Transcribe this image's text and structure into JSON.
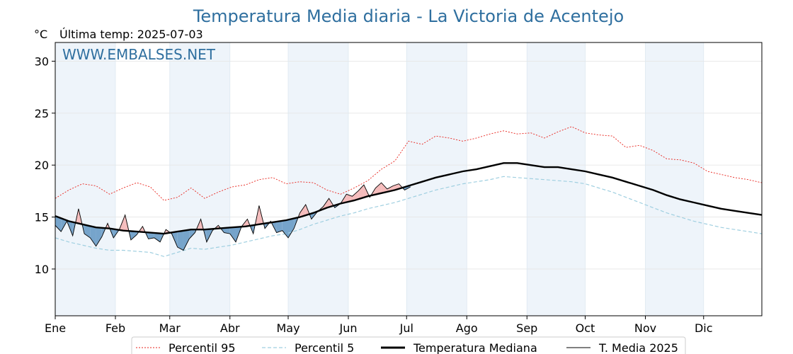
{
  "title": "Temperatura Media diaria - La Victoria de Acentejo",
  "unit": "°C",
  "last_temp_label": "Última temp: 2025-07-03",
  "watermark": "WWW.EMBALSES.NET",
  "colors": {
    "title": "#2f6f9f",
    "p95": "#e8231c",
    "p5": "#9fcfe0",
    "median": "#000000",
    "current": "#000000",
    "above_fill": "#f4b8b8",
    "below_fill": "#6f9fc8",
    "band": "#eef4fa"
  },
  "chart_data": {
    "type": "line",
    "xlabel": "",
    "ylabel": "°C",
    "ylim": [
      5.5,
      31.8
    ],
    "yticks": [
      10,
      15,
      20,
      25,
      30
    ],
    "xlim_days": [
      1,
      365
    ],
    "months": [
      {
        "label": "Ene",
        "day": 1
      },
      {
        "label": "Feb",
        "day": 32
      },
      {
        "label": "Mar",
        "day": 60
      },
      {
        "label": "Abr",
        "day": 91
      },
      {
        "label": "May",
        "day": 121
      },
      {
        "label": "Jun",
        "day": 152
      },
      {
        "label": "Jul",
        "day": 182
      },
      {
        "label": "Ago",
        "day": 213
      },
      {
        "label": "Sep",
        "day": 244
      },
      {
        "label": "Oct",
        "day": 274
      },
      {
        "label": "Nov",
        "day": 305
      },
      {
        "label": "Dic",
        "day": 335
      }
    ],
    "grid": true,
    "legend_placement": "bottom-center",
    "series": [
      {
        "name": "Percentil 95",
        "style": "dotted",
        "x": [
          1,
          8,
          15,
          22,
          29,
          36,
          43,
          50,
          57,
          64,
          71,
          78,
          85,
          92,
          99,
          106,
          113,
          120,
          127,
          134,
          141,
          148,
          155,
          162,
          169,
          176,
          183,
          190,
          197,
          204,
          211,
          218,
          225,
          232,
          239,
          246,
          253,
          260,
          267,
          274,
          281,
          288,
          295,
          302,
          309,
          316,
          323,
          330,
          337,
          344,
          351,
          358,
          365
        ],
        "y": [
          16.8,
          17.6,
          18.2,
          18.0,
          17.2,
          17.8,
          18.3,
          17.9,
          16.6,
          16.9,
          17.8,
          16.8,
          17.4,
          17.9,
          18.1,
          18.6,
          18.8,
          18.2,
          18.4,
          18.3,
          17.6,
          17.2,
          17.8,
          18.5,
          19.6,
          20.4,
          22.3,
          22.0,
          22.8,
          22.6,
          22.3,
          22.6,
          23.0,
          23.3,
          23.0,
          23.1,
          22.6,
          23.2,
          23.7,
          23.1,
          22.9,
          22.8,
          21.7,
          21.9,
          21.4,
          20.6,
          20.5,
          20.2,
          19.4,
          19.1,
          18.8,
          18.6,
          18.3
        ]
      },
      {
        "name": "Percentil 5",
        "style": "dashed",
        "x": [
          1,
          8,
          15,
          22,
          29,
          36,
          43,
          50,
          57,
          64,
          71,
          78,
          85,
          92,
          99,
          106,
          113,
          120,
          127,
          134,
          141,
          148,
          155,
          162,
          169,
          176,
          183,
          190,
          197,
          204,
          211,
          218,
          225,
          232,
          239,
          246,
          253,
          260,
          267,
          274,
          281,
          288,
          295,
          302,
          309,
          316,
          323,
          330,
          337,
          344,
          351,
          358,
          365
        ],
        "y": [
          13.0,
          12.6,
          12.3,
          12.0,
          11.8,
          11.8,
          11.7,
          11.6,
          11.2,
          11.6,
          12.0,
          11.9,
          12.1,
          12.3,
          12.6,
          12.9,
          13.2,
          13.4,
          13.8,
          14.3,
          14.7,
          15.1,
          15.4,
          15.8,
          16.1,
          16.4,
          16.8,
          17.2,
          17.6,
          17.9,
          18.2,
          18.4,
          18.6,
          18.9,
          18.8,
          18.7,
          18.6,
          18.5,
          18.4,
          18.2,
          17.8,
          17.4,
          16.9,
          16.4,
          15.9,
          15.4,
          15.0,
          14.6,
          14.3,
          14.0,
          13.8,
          13.6,
          13.4
        ]
      },
      {
        "name": "Temperatura Mediana",
        "style": "solid-thick",
        "x": [
          1,
          8,
          15,
          22,
          29,
          36,
          43,
          50,
          57,
          64,
          71,
          78,
          85,
          92,
          99,
          106,
          113,
          120,
          127,
          134,
          141,
          148,
          155,
          162,
          169,
          176,
          183,
          190,
          197,
          204,
          211,
          218,
          225,
          232,
          239,
          246,
          253,
          260,
          267,
          274,
          281,
          288,
          295,
          302,
          309,
          316,
          323,
          330,
          337,
          344,
          351,
          358,
          365
        ],
        "y": [
          15.1,
          14.6,
          14.3,
          14.0,
          13.9,
          13.7,
          13.6,
          13.5,
          13.4,
          13.6,
          13.8,
          13.8,
          13.9,
          14.0,
          14.1,
          14.3,
          14.5,
          14.7,
          15.0,
          15.4,
          15.9,
          16.3,
          16.6,
          17.0,
          17.3,
          17.6,
          18.0,
          18.4,
          18.8,
          19.1,
          19.4,
          19.6,
          19.9,
          20.2,
          20.2,
          20.0,
          19.8,
          19.8,
          19.6,
          19.4,
          19.1,
          18.8,
          18.4,
          18.0,
          17.6,
          17.1,
          16.7,
          16.4,
          16.1,
          15.8,
          15.6,
          15.4,
          15.2
        ]
      },
      {
        "name": "T. Media 2025",
        "style": "solid-thin",
        "x": [
          1,
          4,
          7,
          10,
          13,
          16,
          19,
          22,
          25,
          28,
          31,
          34,
          37,
          40,
          43,
          46,
          49,
          52,
          55,
          58,
          61,
          64,
          67,
          70,
          73,
          76,
          79,
          82,
          85,
          88,
          91,
          94,
          97,
          100,
          103,
          106,
          109,
          112,
          115,
          118,
          121,
          124,
          127,
          130,
          133,
          136,
          139,
          142,
          145,
          148,
          151,
          154,
          157,
          160,
          163,
          166,
          169,
          172,
          175,
          178,
          181,
          184
        ],
        "y": [
          14.2,
          13.6,
          14.6,
          13.2,
          15.8,
          13.4,
          13.0,
          12.2,
          13.1,
          14.4,
          13.0,
          13.8,
          15.2,
          12.8,
          13.3,
          14.1,
          12.9,
          13.0,
          12.6,
          13.8,
          13.4,
          12.1,
          11.8,
          12.9,
          13.5,
          14.8,
          12.6,
          13.7,
          14.2,
          13.5,
          13.4,
          12.6,
          14.1,
          14.8,
          13.4,
          16.1,
          13.9,
          14.6,
          13.5,
          13.7,
          13.0,
          13.9,
          15.4,
          16.2,
          14.8,
          15.5,
          16.0,
          16.8,
          15.9,
          16.3,
          17.2,
          17.0,
          17.5,
          18.1,
          16.9,
          17.8,
          18.3,
          17.7,
          18.0,
          18.2,
          17.6,
          17.9
        ]
      }
    ]
  },
  "legend": [
    {
      "label": "Percentil 95"
    },
    {
      "label": "Percentil 5"
    },
    {
      "label": "Temperatura Mediana"
    },
    {
      "label": "T. Media 2025"
    }
  ]
}
